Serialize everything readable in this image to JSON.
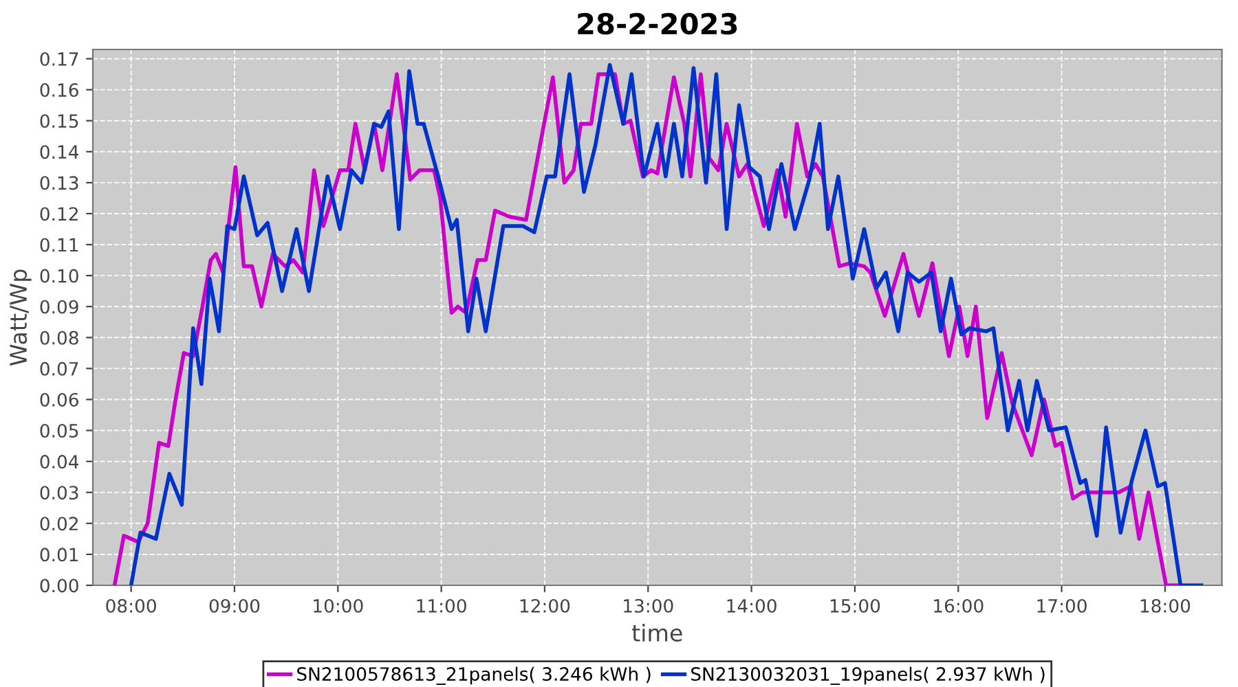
{
  "chart_data": {
    "type": "line",
    "title": "28-2-2023",
    "xlabel": "time",
    "ylabel": "Watt/Wp",
    "xlim": [
      7.63,
      18.55
    ],
    "ylim": [
      0,
      0.173
    ],
    "xticks": [
      {
        "value": 8,
        "label": "08:00"
      },
      {
        "value": 9,
        "label": "09:00"
      },
      {
        "value": 10,
        "label": "10:00"
      },
      {
        "value": 11,
        "label": "11:00"
      },
      {
        "value": 12,
        "label": "12:00"
      },
      {
        "value": 13,
        "label": "13:00"
      },
      {
        "value": 14,
        "label": "14:00"
      },
      {
        "value": 15,
        "label": "15:00"
      },
      {
        "value": 16,
        "label": "16:00"
      },
      {
        "value": 17,
        "label": "17:00"
      },
      {
        "value": 18,
        "label": "18:00"
      }
    ],
    "yticks": [
      {
        "value": 0,
        "label": "0.00"
      },
      {
        "value": 0.01,
        "label": "0.01"
      },
      {
        "value": 0.02,
        "label": "0.02"
      },
      {
        "value": 0.03,
        "label": "0.03"
      },
      {
        "value": 0.04,
        "label": "0.04"
      },
      {
        "value": 0.05,
        "label": "0.05"
      },
      {
        "value": 0.06,
        "label": "0.06"
      },
      {
        "value": 0.07,
        "label": "0.07"
      },
      {
        "value": 0.08,
        "label": "0.08"
      },
      {
        "value": 0.09,
        "label": "0.09"
      },
      {
        "value": 0.1,
        "label": "0.10"
      },
      {
        "value": 0.11,
        "label": "0.11"
      },
      {
        "value": 0.12,
        "label": "0.12"
      },
      {
        "value": 0.13,
        "label": "0.13"
      },
      {
        "value": 0.14,
        "label": "0.14"
      },
      {
        "value": 0.15,
        "label": "0.15"
      },
      {
        "value": 0.16,
        "label": "0.16"
      },
      {
        "value": 0.17,
        "label": "0.17"
      }
    ],
    "grid": true,
    "legend": "bottom",
    "line_style": "solid",
    "marker": "none",
    "series": [
      {
        "name": "SN2100578613_21panels( 3.246 kWh )",
        "color": "#cc00cc",
        "x": [
          7.84,
          7.93,
          8.07,
          8.16,
          8.27,
          8.36,
          8.43,
          8.51,
          8.6,
          8.69,
          8.77,
          8.82,
          8.89,
          9.01,
          9.09,
          9.17,
          9.26,
          9.37,
          9.49,
          9.57,
          9.66,
          9.77,
          9.86,
          10.02,
          10.1,
          10.17,
          10.26,
          10.35,
          10.43,
          10.57,
          10.7,
          10.79,
          10.93,
          10.99,
          11.1,
          11.16,
          11.24,
          11.35,
          11.43,
          11.52,
          11.66,
          11.82,
          11.96,
          12.08,
          12.19,
          12.28,
          12.35,
          12.45,
          12.52,
          12.61,
          12.68,
          12.76,
          12.83,
          12.95,
          13.03,
          13.09,
          13.25,
          13.35,
          13.41,
          13.51,
          13.59,
          13.68,
          13.76,
          13.88,
          13.96,
          14.12,
          14.25,
          14.33,
          14.44,
          14.54,
          14.62,
          14.69,
          14.85,
          14.95,
          15.09,
          15.15,
          15.29,
          15.47,
          15.62,
          15.75,
          15.91,
          16.01,
          16.09,
          16.17,
          16.28,
          16.42,
          16.52,
          16.71,
          16.83,
          16.94,
          17.0,
          17.11,
          17.2,
          17.55,
          17.67,
          17.75,
          17.84,
          18.01,
          18.15
        ],
        "values": [
          0,
          0.016,
          0.014,
          0.02,
          0.046,
          0.045,
          0.06,
          0.075,
          0.074,
          0.09,
          0.105,
          0.107,
          0.101,
          0.135,
          0.103,
          0.103,
          0.09,
          0.107,
          0.103,
          0.105,
          0.101,
          0.134,
          0.116,
          0.134,
          0.134,
          0.149,
          0.134,
          0.149,
          0.134,
          0.165,
          0.131,
          0.134,
          0.134,
          0.125,
          0.088,
          0.09,
          0.088,
          0.105,
          0.105,
          0.121,
          0.119,
          0.118,
          0.143,
          0.164,
          0.13,
          0.134,
          0.149,
          0.149,
          0.165,
          0.165,
          0.165,
          0.149,
          0.15,
          0.132,
          0.134,
          0.133,
          0.164,
          0.149,
          0.132,
          0.165,
          0.138,
          0.134,
          0.149,
          0.132,
          0.136,
          0.116,
          0.134,
          0.119,
          0.149,
          0.132,
          0.136,
          0.132,
          0.103,
          0.104,
          0.103,
          0.101,
          0.087,
          0.107,
          0.087,
          0.104,
          0.074,
          0.09,
          0.074,
          0.09,
          0.054,
          0.075,
          0.059,
          0.042,
          0.06,
          0.045,
          0.046,
          0.028,
          0.03,
          0.03,
          0.032,
          0.015,
          0.03,
          0,
          0
        ]
      },
      {
        "name": "SN2130032031_19panels( 2.937 kWh )",
        "color": "#0033cc",
        "x": [
          8.0,
          8.09,
          8.24,
          8.37,
          8.49,
          8.6,
          8.68,
          8.76,
          8.85,
          8.93,
          9.0,
          9.09,
          9.22,
          9.32,
          9.46,
          9.6,
          9.72,
          9.9,
          10.02,
          10.13,
          10.23,
          10.35,
          10.42,
          10.49,
          10.59,
          10.69,
          10.77,
          10.83,
          10.97,
          11.1,
          11.15,
          11.26,
          11.34,
          11.43,
          11.6,
          11.79,
          11.9,
          12.02,
          12.1,
          12.24,
          12.38,
          12.49,
          12.63,
          12.76,
          12.84,
          12.96,
          13.09,
          13.17,
          13.25,
          13.33,
          13.44,
          13.56,
          13.66,
          13.76,
          13.88,
          13.98,
          14.08,
          14.17,
          14.29,
          14.42,
          14.56,
          14.66,
          14.74,
          14.84,
          14.98,
          15.09,
          15.21,
          15.3,
          15.42,
          15.51,
          15.62,
          15.74,
          15.83,
          15.93,
          16.03,
          16.11,
          16.27,
          16.34,
          16.48,
          16.59,
          16.67,
          16.76,
          16.88,
          17.04,
          17.18,
          17.23,
          17.34,
          17.43,
          17.57,
          17.68,
          17.81,
          17.93,
          18.0,
          18.15,
          18.25,
          18.35
        ],
        "values": [
          0,
          0.017,
          0.015,
          0.036,
          0.026,
          0.083,
          0.065,
          0.099,
          0.082,
          0.116,
          0.115,
          0.132,
          0.113,
          0.117,
          0.095,
          0.115,
          0.095,
          0.132,
          0.115,
          0.134,
          0.13,
          0.149,
          0.148,
          0.153,
          0.115,
          0.166,
          0.149,
          0.149,
          0.132,
          0.115,
          0.118,
          0.082,
          0.099,
          0.082,
          0.116,
          0.116,
          0.114,
          0.132,
          0.132,
          0.165,
          0.127,
          0.142,
          0.168,
          0.149,
          0.165,
          0.132,
          0.149,
          0.132,
          0.149,
          0.132,
          0.167,
          0.13,
          0.165,
          0.115,
          0.155,
          0.135,
          0.132,
          0.115,
          0.136,
          0.115,
          0.131,
          0.149,
          0.115,
          0.132,
          0.099,
          0.115,
          0.096,
          0.101,
          0.082,
          0.101,
          0.098,
          0.101,
          0.082,
          0.099,
          0.081,
          0.083,
          0.082,
          0.083,
          0.05,
          0.066,
          0.05,
          0.066,
          0.05,
          0.051,
          0.033,
          0.034,
          0.016,
          0.051,
          0.017,
          0.034,
          0.05,
          0.032,
          0.033,
          0,
          0,
          0
        ]
      }
    ]
  }
}
